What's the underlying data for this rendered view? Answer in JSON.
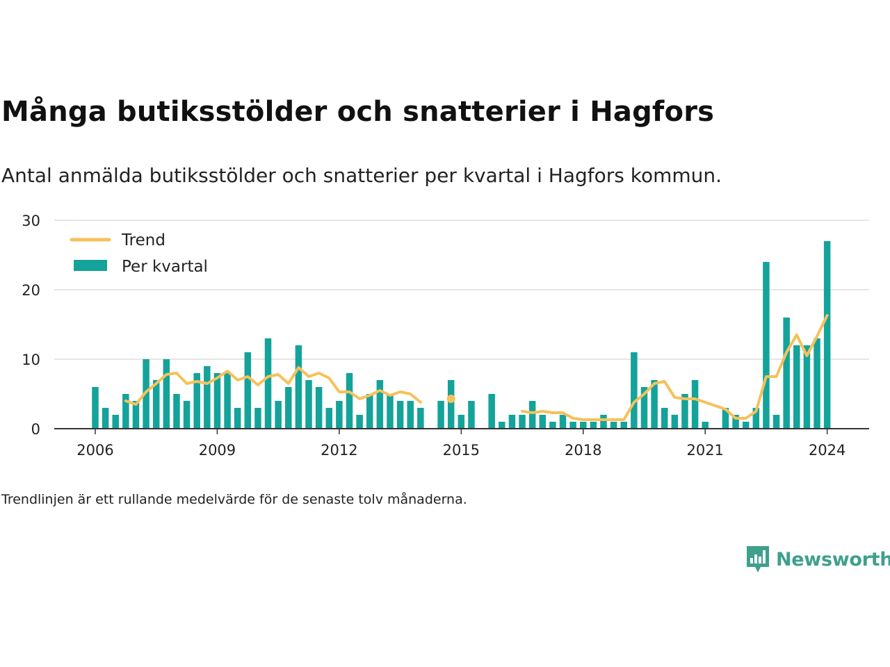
{
  "title": "Många butiksstölder och snatterier i Hagfors",
  "subtitle": "Antal anmälda butiksstölder och snatterier per kvartal i Hagfors kommun.",
  "note": "Trendlinjen är ett rullande medelvärde för de senaste tolv månaderna.",
  "brand": {
    "name": "Newsworthy",
    "icon": "newsworthy-logo-icon"
  },
  "colors": {
    "bar": "#14a39a",
    "trend": "#f5c15a",
    "grid": "#dddddd",
    "axis": "#333333"
  },
  "chart_data": {
    "type": "bar",
    "title": "Många butiksstölder och snatterier i Hagfors",
    "xlabel": "",
    "ylabel": "",
    "ylim": [
      0,
      30
    ],
    "yticks": [
      0,
      10,
      20,
      30
    ],
    "xticks": [
      "2006",
      "2009",
      "2012",
      "2015",
      "2018",
      "2021",
      "2024"
    ],
    "grid": true,
    "legend_position": "top-left",
    "legend": [
      "Trend",
      "Per kvartal"
    ],
    "x": [
      "2006 Q1",
      "2006 Q2",
      "2006 Q3",
      "2006 Q4",
      "2007 Q1",
      "2007 Q2",
      "2007 Q3",
      "2007 Q4",
      "2008 Q1",
      "2008 Q2",
      "2008 Q3",
      "2008 Q4",
      "2009 Q1",
      "2009 Q2",
      "2009 Q3",
      "2009 Q4",
      "2010 Q1",
      "2010 Q2",
      "2010 Q3",
      "2010 Q4",
      "2011 Q1",
      "2011 Q2",
      "2011 Q3",
      "2011 Q4",
      "2012 Q1",
      "2012 Q2",
      "2012 Q3",
      "2012 Q4",
      "2013 Q1",
      "2013 Q2",
      "2013 Q3",
      "2013 Q4",
      "2014 Q1",
      "2014 Q2",
      "2014 Q3",
      "2014 Q4",
      "2015 Q1",
      "2015 Q2",
      "2015 Q3",
      "2015 Q4",
      "2016 Q1",
      "2016 Q2",
      "2016 Q3",
      "2016 Q4",
      "2017 Q1",
      "2017 Q2",
      "2017 Q3",
      "2017 Q4",
      "2018 Q1",
      "2018 Q2",
      "2018 Q3",
      "2018 Q4",
      "2019 Q1",
      "2019 Q2",
      "2019 Q3",
      "2019 Q4",
      "2020 Q1",
      "2020 Q2",
      "2020 Q3",
      "2020 Q4",
      "2021 Q1",
      "2021 Q2",
      "2021 Q3",
      "2021 Q4",
      "2022 Q1",
      "2022 Q2",
      "2022 Q3",
      "2022 Q4",
      "2023 Q1",
      "2023 Q2",
      "2023 Q3",
      "2023 Q4",
      "2024 Q1"
    ],
    "series": [
      {
        "name": "Per kvartal",
        "type": "bar",
        "values": [
          6,
          3,
          2,
          5,
          4,
          10,
          7,
          10,
          5,
          4,
          8,
          9,
          8,
          8,
          3,
          11,
          3,
          13,
          4,
          6,
          12,
          7,
          6,
          3,
          4,
          8,
          2,
          5,
          7,
          5,
          4,
          4,
          3,
          null,
          4,
          7,
          2,
          4,
          null,
          5,
          1,
          2,
          2,
          4,
          2,
          1,
          2,
          1,
          1,
          1,
          2,
          1,
          1,
          11,
          6,
          7,
          3,
          2,
          5,
          7,
          1,
          null,
          3,
          2,
          1,
          3,
          24,
          2,
          16,
          12,
          12,
          13,
          27
        ]
      },
      {
        "name": "Trend",
        "type": "line",
        "values": [
          null,
          null,
          null,
          4.0,
          3.5,
          5.3,
          6.5,
          7.8,
          8.0,
          6.5,
          6.8,
          6.5,
          7.3,
          8.3,
          7.0,
          7.5,
          6.3,
          7.5,
          7.8,
          6.5,
          8.8,
          7.5,
          8.0,
          7.3,
          5.3,
          5.3,
          4.3,
          4.8,
          5.5,
          4.8,
          5.3,
          5.0,
          3.8,
          null,
          null,
          4.3,
          null,
          null,
          null,
          null,
          null,
          null,
          2.5,
          2.3,
          2.5,
          2.3,
          2.3,
          1.5,
          1.3,
          1.3,
          1.3,
          1.3,
          1.3,
          3.8,
          5.0,
          6.5,
          6.8,
          4.5,
          4.3,
          4.3,
          3.8,
          3.3,
          2.8,
          1.5,
          1.5,
          2.5,
          7.5,
          7.5,
          11.0,
          13.5,
          10.5,
          13.3,
          16.3
        ]
      }
    ]
  }
}
